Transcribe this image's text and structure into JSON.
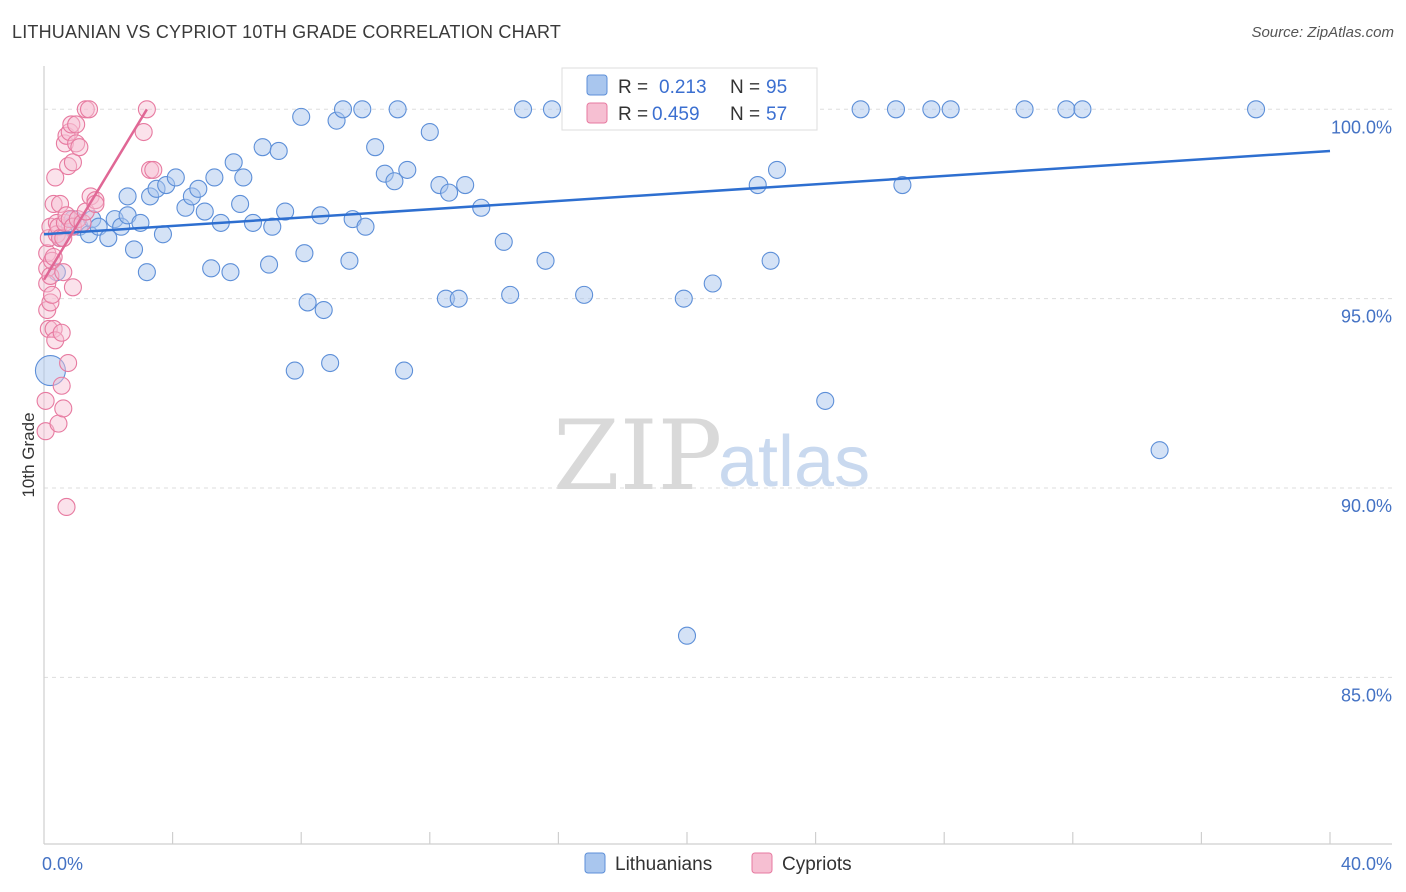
{
  "title": "LITHUANIAN VS CYPRIOT 10TH GRADE CORRELATION CHART",
  "source": "Source: ZipAtlas.com",
  "watermark": {
    "zip": "ZIP",
    "atlas": "atlas"
  },
  "colors": {
    "blue_fill": "#a9c6ee",
    "blue_stroke": "#5d8fd8",
    "blue_line": "#2e6fd0",
    "pink_fill": "#f6bfd2",
    "pink_stroke": "#e77aa0",
    "pink_line": "#e06795",
    "grid": "#dddddd",
    "axis_label": "#4472c4"
  },
  "legend": {
    "r_label": "R =",
    "n_label": "N =",
    "lithuanians": {
      "r": "0.213",
      "n": "95"
    },
    "cypriots": {
      "r": "0.459",
      "n": "57"
    }
  },
  "bottom_legend": [
    "Lithuanians",
    "Cypriots"
  ],
  "chart_data": {
    "type": "scatter",
    "title": "LITHUANIAN VS CYPRIOT 10TH GRADE CORRELATION CHART",
    "xlabel": "",
    "ylabel": "10th Grade",
    "xlim": [
      0,
      40
    ],
    "ylim": [
      80.6,
      100.8
    ],
    "x_tick_labels": [
      "0.0%",
      "40.0%"
    ],
    "y_tick_values": [
      85,
      90,
      95,
      100
    ],
    "y_tick_labels": [
      "85.0%",
      "90.0%",
      "95.0%",
      "100.0%"
    ],
    "series": [
      {
        "name": "Lithuanians",
        "r": 0.213,
        "n": 95,
        "trend": {
          "x0": 0.0,
          "y0": 96.7,
          "x1": 40.0,
          "y1": 98.9
        },
        "points": [
          [
            0.2,
            93.1
          ],
          [
            0.4,
            95.7
          ],
          [
            0.5,
            96.6
          ],
          [
            0.8,
            96.9
          ],
          [
            0.9,
            97.1
          ],
          [
            1.1,
            96.9
          ],
          [
            1.4,
            96.7
          ],
          [
            1.5,
            97.1
          ],
          [
            1.7,
            96.9
          ],
          [
            2.0,
            96.6
          ],
          [
            2.2,
            97.1
          ],
          [
            2.4,
            96.9
          ],
          [
            2.6,
            97.2
          ],
          [
            2.6,
            97.7
          ],
          [
            2.8,
            96.3
          ],
          [
            3.0,
            97.0
          ],
          [
            3.2,
            95.7
          ],
          [
            3.3,
            97.7
          ],
          [
            3.5,
            97.9
          ],
          [
            3.7,
            96.7
          ],
          [
            3.8,
            98.0
          ],
          [
            4.1,
            98.2
          ],
          [
            4.4,
            97.4
          ],
          [
            4.6,
            97.7
          ],
          [
            4.8,
            97.9
          ],
          [
            5.0,
            97.3
          ],
          [
            5.2,
            95.8
          ],
          [
            5.3,
            98.2
          ],
          [
            5.5,
            97.0
          ],
          [
            5.8,
            95.7
          ],
          [
            5.9,
            98.6
          ],
          [
            6.1,
            97.5
          ],
          [
            6.2,
            98.2
          ],
          [
            6.5,
            97.0
          ],
          [
            6.8,
            99.0
          ],
          [
            7.0,
            95.9
          ],
          [
            7.1,
            96.9
          ],
          [
            7.3,
            98.9
          ],
          [
            7.5,
            97.3
          ],
          [
            7.8,
            93.1
          ],
          [
            8.0,
            99.8
          ],
          [
            8.1,
            96.2
          ],
          [
            8.2,
            94.9
          ],
          [
            8.6,
            97.2
          ],
          [
            8.7,
            94.7
          ],
          [
            8.9,
            93.3
          ],
          [
            9.1,
            99.7
          ],
          [
            9.3,
            100.0
          ],
          [
            9.5,
            96.0
          ],
          [
            9.6,
            97.1
          ],
          [
            9.9,
            100.0
          ],
          [
            10.0,
            96.9
          ],
          [
            10.3,
            99.0
          ],
          [
            10.6,
            98.3
          ],
          [
            10.9,
            98.1
          ],
          [
            11.0,
            100.0
          ],
          [
            11.2,
            93.1
          ],
          [
            11.3,
            98.4
          ],
          [
            12.0,
            99.4
          ],
          [
            12.3,
            98.0
          ],
          [
            12.5,
            95.0
          ],
          [
            12.6,
            97.8
          ],
          [
            12.9,
            95.0
          ],
          [
            13.1,
            98.0
          ],
          [
            13.6,
            97.4
          ],
          [
            14.3,
            96.5
          ],
          [
            14.5,
            95.1
          ],
          [
            14.9,
            100.0
          ],
          [
            15.6,
            96.0
          ],
          [
            15.8,
            100.0
          ],
          [
            16.5,
            100.0
          ],
          [
            16.8,
            95.1
          ],
          [
            17.2,
            100.0
          ],
          [
            18.0,
            100.0
          ],
          [
            19.0,
            100.0
          ],
          [
            19.9,
            95.0
          ],
          [
            20.0,
            86.1
          ],
          [
            20.8,
            95.4
          ],
          [
            21.6,
            100.0
          ],
          [
            22.2,
            98.0
          ],
          [
            22.6,
            96.0
          ],
          [
            22.8,
            98.4
          ],
          [
            23.2,
            100.0
          ],
          [
            23.7,
            100.0
          ],
          [
            24.3,
            92.3
          ],
          [
            25.4,
            100.0
          ],
          [
            26.5,
            100.0
          ],
          [
            26.7,
            98.0
          ],
          [
            27.6,
            100.0
          ],
          [
            28.2,
            100.0
          ],
          [
            30.5,
            100.0
          ],
          [
            31.8,
            100.0
          ],
          [
            32.3,
            100.0
          ],
          [
            34.7,
            91.0
          ],
          [
            37.7,
            100.0
          ]
        ]
      },
      {
        "name": "Cypriots",
        "r": 0.459,
        "n": 57,
        "trend": {
          "x0": 0.0,
          "y0": 95.5,
          "x1": 3.2,
          "y1": 100.0
        },
        "points": [
          [
            0.05,
            92.3
          ],
          [
            0.05,
            91.5
          ],
          [
            0.1,
            95.8
          ],
          [
            0.1,
            96.2
          ],
          [
            0.1,
            95.4
          ],
          [
            0.1,
            94.7
          ],
          [
            0.15,
            94.2
          ],
          [
            0.15,
            96.6
          ],
          [
            0.2,
            96.9
          ],
          [
            0.2,
            95.6
          ],
          [
            0.2,
            94.9
          ],
          [
            0.25,
            96.0
          ],
          [
            0.25,
            95.1
          ],
          [
            0.3,
            97.5
          ],
          [
            0.3,
            96.1
          ],
          [
            0.3,
            94.2
          ],
          [
            0.35,
            98.2
          ],
          [
            0.35,
            93.9
          ],
          [
            0.4,
            97.0
          ],
          [
            0.4,
            96.7
          ],
          [
            0.45,
            96.9
          ],
          [
            0.45,
            91.7
          ],
          [
            0.5,
            97.5
          ],
          [
            0.5,
            96.6
          ],
          [
            0.55,
            94.1
          ],
          [
            0.55,
            92.7
          ],
          [
            0.6,
            96.6
          ],
          [
            0.6,
            95.7
          ],
          [
            0.6,
            92.1
          ],
          [
            0.65,
            99.1
          ],
          [
            0.65,
            97.0
          ],
          [
            0.7,
            99.3
          ],
          [
            0.7,
            97.2
          ],
          [
            0.7,
            89.5
          ],
          [
            0.75,
            98.5
          ],
          [
            0.75,
            93.3
          ],
          [
            0.8,
            99.4
          ],
          [
            0.8,
            97.1
          ],
          [
            0.85,
            99.6
          ],
          [
            0.9,
            98.6
          ],
          [
            0.9,
            96.9
          ],
          [
            0.9,
            95.3
          ],
          [
            1.0,
            99.6
          ],
          [
            1.0,
            99.1
          ],
          [
            1.05,
            97.1
          ],
          [
            1.1,
            99.0
          ],
          [
            1.2,
            97.0
          ],
          [
            1.3,
            97.3
          ],
          [
            1.3,
            100.0
          ],
          [
            1.4,
            100.0
          ],
          [
            1.45,
            97.7
          ],
          [
            1.6,
            97.6
          ],
          [
            1.6,
            97.5
          ],
          [
            3.1,
            99.4
          ],
          [
            3.2,
            100.0
          ],
          [
            3.3,
            98.4
          ],
          [
            3.4,
            98.4
          ]
        ]
      }
    ]
  }
}
